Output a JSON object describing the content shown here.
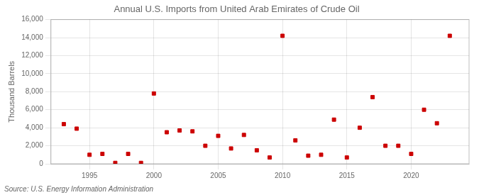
{
  "chart_data": {
    "type": "scatter",
    "title": "Annual U.S. Imports from United Arab Emirates of Crude Oil",
    "ylabel": "Thousand Barrels",
    "annotations": [
      "Source: U.S. Energy Information Administration"
    ],
    "x": [
      1993,
      1994,
      1995,
      1996,
      1997,
      1998,
      1999,
      2000,
      2001,
      2002,
      2003,
      2004,
      2005,
      2006,
      2007,
      2008,
      2009,
      2010,
      2011,
      2012,
      2013,
      2014,
      2015,
      2016,
      2017,
      2018,
      2019,
      2020,
      2021,
      2022,
      2023
    ],
    "values": [
      4400,
      3900,
      1000,
      1100,
      100,
      1100,
      100,
      7800,
      3500,
      3700,
      3600,
      2000,
      3100,
      1700,
      3200,
      1500,
      700,
      14200,
      2600,
      900,
      1000,
      4900,
      700,
      4000,
      7400,
      2000,
      2000,
      1100,
      6000,
      4500,
      14200
    ],
    "color": "#cc0000",
    "marker": "square",
    "xlim": [
      1992,
      2024.5
    ],
    "xticks": [
      1995,
      2000,
      2005,
      2010,
      2015,
      2020
    ],
    "ylim": [
      0,
      16000
    ],
    "yticks": [
      0,
      {
        "value": 2000,
        "label": "2,000"
      },
      {
        "value": 4000,
        "label": "4,000"
      },
      {
        "value": 6000,
        "label": "6,000"
      },
      {
        "value": 8000,
        "label": "8,000"
      },
      {
        "value": 10000,
        "label": "10,000"
      },
      {
        "value": 12000,
        "label": "12,000"
      },
      {
        "value": 14000,
        "label": "14,000"
      },
      {
        "value": 16000,
        "label": "16,000"
      }
    ],
    "grid": true
  }
}
